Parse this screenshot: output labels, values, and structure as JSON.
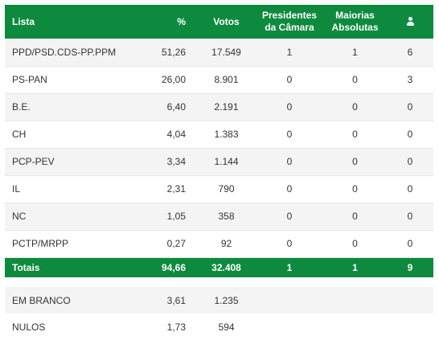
{
  "header": {
    "lista": "Lista",
    "pct": "%",
    "votos": "Votos",
    "presidentes_line1": "Presidentes",
    "presidentes_line2": "da Câmara",
    "maiorias_line1": "Maiorias",
    "maiorias_line2": "Absolutas",
    "mandates_icon": "user-icon"
  },
  "rows": [
    {
      "lista": "PPD/PSD.CDS-PP.PPM",
      "pct": "51,26",
      "votos": "17.549",
      "presidentes": "1",
      "maiorias": "1",
      "mandatos": "6"
    },
    {
      "lista": "PS-PAN",
      "pct": "26,00",
      "votos": "8.901",
      "presidentes": "0",
      "maiorias": "0",
      "mandatos": "3"
    },
    {
      "lista": "B.E.",
      "pct": "6,40",
      "votos": "2.191",
      "presidentes": "0",
      "maiorias": "0",
      "mandatos": "0"
    },
    {
      "lista": "CH",
      "pct": "4,04",
      "votos": "1.383",
      "presidentes": "0",
      "maiorias": "0",
      "mandatos": "0"
    },
    {
      "lista": "PCP-PEV",
      "pct": "3,34",
      "votos": "1.144",
      "presidentes": "0",
      "maiorias": "0",
      "mandatos": "0"
    },
    {
      "lista": "IL",
      "pct": "2,31",
      "votos": "790",
      "presidentes": "0",
      "maiorias": "0",
      "mandatos": "0"
    },
    {
      "lista": "NC",
      "pct": "1,05",
      "votos": "358",
      "presidentes": "0",
      "maiorias": "0",
      "mandatos": "0"
    },
    {
      "lista": "PCTP/MRPP",
      "pct": "0,27",
      "votos": "92",
      "presidentes": "0",
      "maiorias": "0",
      "mandatos": "0"
    }
  ],
  "totals": {
    "label": "Totais",
    "pct": "94,66",
    "votos": "32.408",
    "presidentes": "1",
    "maiorias": "1",
    "mandatos": "9"
  },
  "extras": [
    {
      "label": "EM BRANCO",
      "pct": "3,61",
      "votos": "1.235"
    },
    {
      "label": "NULOS",
      "pct": "1,73",
      "votos": "594"
    }
  ],
  "colors": {
    "accent": "#0e8a3e",
    "row_alt": "#f4f4f4",
    "text": "#333333"
  }
}
